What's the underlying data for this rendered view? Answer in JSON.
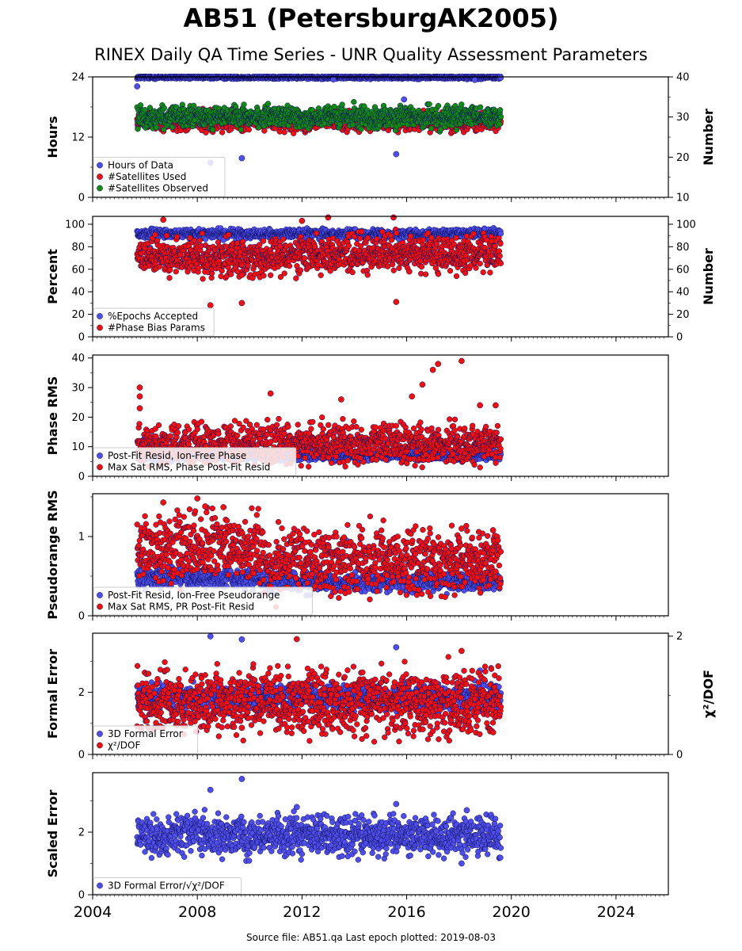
{
  "title": "AB51 (PetersburgAK2005)",
  "subtitle": "RINEX Daily QA Time Series - UNR Quality Assessment Parameters",
  "footer": "Source file: AB51.qa Last epoch plotted: 2019-08-03",
  "colors": {
    "blue": "#4f4fe8",
    "red": "#ee1111",
    "green": "#138a13",
    "navy": "#0a0a5a"
  },
  "chart_data": [
    {
      "type": "scatter",
      "ylabel": "Hours",
      "ylabel_right": "Number",
      "xlim": [
        2004,
        2026
      ],
      "ylim": [
        0,
        24
      ],
      "ylim_right": [
        10,
        40
      ],
      "yticks": [
        0,
        12,
        24
      ],
      "yticks_right": [
        10,
        20,
        30,
        40
      ],
      "legend_placement": "lower-left",
      "series": [
        {
          "name": "Hours of Data",
          "axis": "left",
          "color": "#4f4fe8",
          "band": {
            "x": [
              2005.7,
              2019.6
            ],
            "center": 23.9,
            "spread": 0.15
          },
          "outliers": [
            [
              2005.7,
              22.1
            ],
            [
              2008.5,
              6.9
            ],
            [
              2009.7,
              7.8
            ],
            [
              2009.7,
              17.0
            ],
            [
              2015.6,
              8.6
            ],
            [
              2015.9,
              19.5
            ],
            [
              2013.2,
              23.5
            ],
            [
              2018.6,
              23.4
            ]
          ]
        },
        {
          "name": "#Satellites Used",
          "axis": "right",
          "color": "#ee1111",
          "band": {
            "x": [
              2005.7,
              2019.6
            ],
            "center": 29.0,
            "spread": 1.2
          },
          "outliers": [
            [
              2009.7,
              30.0
            ]
          ]
        },
        {
          "name": "#Satellites Observed",
          "axis": "right",
          "color": "#138a13",
          "band": {
            "x": [
              2005.7,
              2019.6
            ],
            "center": 30.0,
            "spread": 1.3
          },
          "outliers": []
        }
      ]
    },
    {
      "type": "scatter",
      "ylabel": "Percent",
      "ylabel_right": "Number",
      "xlim": [
        2004,
        2026
      ],
      "ylim": [
        0,
        107
      ],
      "ylim_right": [
        0,
        107
      ],
      "yticks": [
        0,
        20,
        40,
        60,
        80,
        100
      ],
      "yticks_right": [
        0,
        20,
        40,
        60,
        80,
        100
      ],
      "legend_placement": "lower-left",
      "series": [
        {
          "name": "%Epochs Accepted",
          "axis": "left",
          "color": "#4f4fe8",
          "band": {
            "x": [
              2005.7,
              2019.6
            ],
            "center": 91.5,
            "spread": 2.0
          },
          "outliers": [
            [
              2006.2,
              79
            ],
            [
              2009.0,
              86
            ],
            [
              2017.0,
              84
            ]
          ]
        },
        {
          "name": "#Phase Bias Params",
          "axis": "right",
          "color": "#ee1111",
          "band": {
            "x": [
              2005.7,
              2019.6
            ],
            "center": 71,
            "spread": 8
          },
          "outliers": [
            [
              2006.7,
              104
            ],
            [
              2008.5,
              28
            ],
            [
              2009.7,
              30
            ],
            [
              2009.7,
              55
            ],
            [
              2012.0,
              103
            ],
            [
              2013.0,
              106
            ],
            [
              2015.6,
              31
            ],
            [
              2015.5,
              106
            ],
            [
              2016.1,
              58
            ]
          ]
        }
      ]
    },
    {
      "type": "scatter",
      "ylabel": "Phase RMS",
      "xlim": [
        2004,
        2026
      ],
      "ylim": [
        0,
        41
      ],
      "yticks": [
        0,
        10,
        20,
        30,
        40
      ],
      "legend_placement": "lower-left",
      "series": [
        {
          "name": "Post-Fit Resid, Ion-Free Phase",
          "axis": "left",
          "color": "#4f4fe8",
          "band": {
            "x": [
              2005.7,
              2019.6
            ],
            "center": 7.0,
            "spread": 0.8
          },
          "outliers": []
        },
        {
          "name": "Max Sat RMS, Phase Post-Fit Resid",
          "axis": "left",
          "color": "#ee1111",
          "band": {
            "x": [
              2005.7,
              2019.6
            ],
            "center": 11.0,
            "spread": 3.2
          },
          "outliers": [
            [
              2005.8,
              30
            ],
            [
              2005.8,
              27
            ],
            [
              2005.8,
              23
            ],
            [
              2010.8,
              28
            ],
            [
              2013.5,
              26
            ],
            [
              2016.2,
              27
            ],
            [
              2016.6,
              31
            ],
            [
              2017.0,
              36
            ],
            [
              2017.2,
              38
            ],
            [
              2018.1,
              39
            ],
            [
              2018.8,
              24
            ],
            [
              2019.4,
              24
            ]
          ]
        }
      ]
    },
    {
      "type": "scatter",
      "ylabel": "Pseudorange RMS",
      "xlim": [
        2004,
        2026
      ],
      "ylim": [
        0,
        1.54
      ],
      "yticks": [
        0,
        1
      ],
      "legend_placement": "lower-left",
      "series": [
        {
          "name": "Post-Fit Resid, Ion-Free Pseudorange",
          "axis": "left",
          "color": "#4f4fe8",
          "band": {
            "x": [
              2005.7,
              2019.6
            ],
            "center": 0.48,
            "spread": 0.06
          },
          "outliers": [
            [
              2013.7,
              0.95
            ],
            [
              2018.4,
              0.85
            ]
          ]
        },
        {
          "name": "Max Sat RMS, PR Post-Fit Resid",
          "axis": "left",
          "color": "#ee1111",
          "band": {
            "x": [
              2005.7,
              2019.6
            ],
            "center": 0.68,
            "spread": 0.2
          },
          "outliers": [
            [
              2006.7,
              1.43
            ],
            [
              2008.0,
              1.48
            ],
            [
              2008.3,
              1.38
            ],
            [
              2009.0,
              1.37
            ],
            [
              2018.1,
              1.1
            ],
            [
              2019.3,
              1.08
            ]
          ]
        }
      ]
    },
    {
      "type": "scatter",
      "ylabel": "Formal Error",
      "ylabel_right": "χ²/DOF",
      "xlim": [
        2004,
        2026
      ],
      "ylim": [
        0,
        3.9
      ],
      "ylim_right": [
        0,
        2.05
      ],
      "yticks": [
        0,
        2
      ],
      "yticks_right": [
        0,
        2
      ],
      "legend_placement": "lower-left",
      "series": [
        {
          "name": "3D Formal Error",
          "axis": "left",
          "color": "#4f4fe8",
          "band": {
            "x": [
              2005.7,
              2019.6
            ],
            "center": 1.85,
            "spread": 0.2
          },
          "outliers": [
            [
              2008.5,
              3.8
            ],
            [
              2009.7,
              3.7
            ],
            [
              2015.6,
              3.45
            ],
            [
              2018.8,
              2.7
            ]
          ]
        },
        {
          "name": "χ²/DOF",
          "axis": "right",
          "color": "#ee1111",
          "band": {
            "x": [
              2005.7,
              2019.6
            ],
            "center": 0.88,
            "spread": 0.26
          },
          "outliers": [
            [
              2011.8,
              1.95
            ],
            [
              2018.1,
              1.75
            ],
            [
              2009.7,
              0.45
            ]
          ]
        }
      ]
    },
    {
      "type": "scatter",
      "ylabel": "Scaled Error",
      "xlim": [
        2004,
        2026
      ],
      "ylim": [
        0,
        3.9
      ],
      "yticks": [
        0,
        2
      ],
      "xticks": [
        2004,
        2008,
        2012,
        2016,
        2020,
        2024
      ],
      "legend_placement": "lower-left",
      "series": [
        {
          "name": "3D Formal Error/√χ²/DOF",
          "axis": "left",
          "color": "#4f4fe8",
          "band": {
            "x": [
              2005.7,
              2019.6
            ],
            "center": 1.9,
            "spread": 0.3
          },
          "outliers": [
            [
              2008.5,
              3.35
            ],
            [
              2009.7,
              3.7
            ],
            [
              2011.8,
              2.8
            ],
            [
              2015.6,
              2.9
            ],
            [
              2018.1,
              1.0
            ],
            [
              2018.3,
              2.7
            ]
          ]
        }
      ]
    }
  ]
}
